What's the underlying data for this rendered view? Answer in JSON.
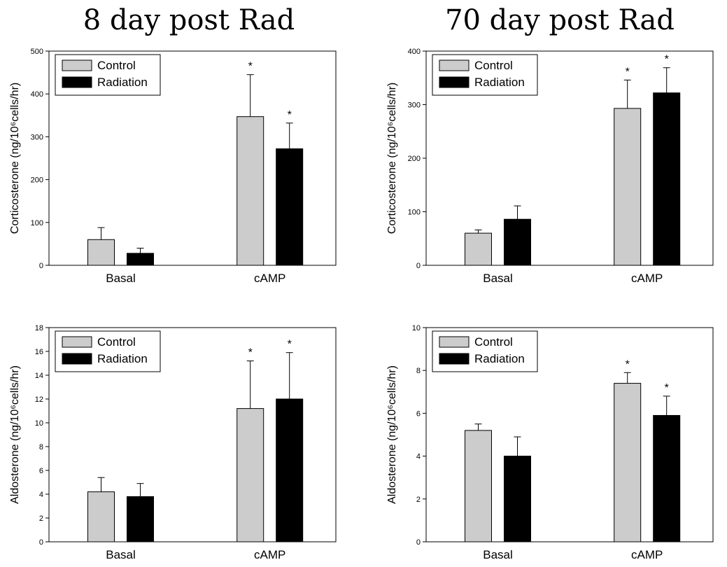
{
  "titles": {
    "left": "8 day post Rad",
    "right": "70 day post Rad"
  },
  "colors": {
    "control": "#cccccc",
    "radiation": "#000000",
    "axis": "#000000"
  },
  "chart_data": [
    {
      "type": "bar",
      "categories": [
        "Basal",
        "cAMP"
      ],
      "ylabel": "Corticosterone (ng/10⁶cells/hr)",
      "ylim": [
        0,
        500
      ],
      "yticks": [
        0,
        100,
        200,
        300,
        400,
        500
      ],
      "legend_position": "top-left",
      "series": [
        {
          "name": "Control",
          "values": [
            60,
            347
          ],
          "errors": [
            28,
            98
          ],
          "significant": [
            false,
            true
          ]
        },
        {
          "name": "Radiation",
          "values": [
            28,
            272
          ],
          "errors": [
            12,
            60
          ],
          "significant": [
            false,
            true
          ]
        }
      ]
    },
    {
      "type": "bar",
      "categories": [
        "Basal",
        "cAMP"
      ],
      "ylabel": "Corticosterone (ng/10⁶cells/hr)",
      "ylim": [
        0,
        400
      ],
      "yticks": [
        0,
        100,
        200,
        300,
        400
      ],
      "legend_position": "top-left",
      "series": [
        {
          "name": "Control",
          "values": [
            60,
            293
          ],
          "errors": [
            6,
            53
          ],
          "significant": [
            false,
            true
          ]
        },
        {
          "name": "Radiation",
          "values": [
            86,
            322
          ],
          "errors": [
            25,
            47
          ],
          "significant": [
            false,
            true
          ]
        }
      ]
    },
    {
      "type": "bar",
      "categories": [
        "Basal",
        "cAMP"
      ],
      "ylabel": "Aldosterone (ng/10⁶cells/hr)",
      "ylim": [
        0,
        18
      ],
      "yticks": [
        0,
        2,
        4,
        6,
        8,
        10,
        12,
        14,
        16,
        18
      ],
      "legend_position": "top-left",
      "series": [
        {
          "name": "Control",
          "values": [
            4.2,
            11.2
          ],
          "errors": [
            1.2,
            4.0
          ],
          "significant": [
            false,
            true
          ]
        },
        {
          "name": "Radiation",
          "values": [
            3.8,
            12.0
          ],
          "errors": [
            1.1,
            3.9
          ],
          "significant": [
            false,
            true
          ]
        }
      ]
    },
    {
      "type": "bar",
      "categories": [
        "Basal",
        "cAMP"
      ],
      "ylabel": "Aldosterone (ng/10⁶cells/hr)",
      "ylim": [
        0,
        10
      ],
      "yticks": [
        0,
        2,
        4,
        6,
        8,
        10
      ],
      "legend_position": "top-left",
      "series": [
        {
          "name": "Control",
          "values": [
            5.2,
            7.4
          ],
          "errors": [
            0.3,
            0.5
          ],
          "significant": [
            false,
            true
          ]
        },
        {
          "name": "Radiation",
          "values": [
            4.0,
            5.9
          ],
          "errors": [
            0.9,
            0.9
          ],
          "significant": [
            false,
            true
          ]
        }
      ]
    }
  ]
}
